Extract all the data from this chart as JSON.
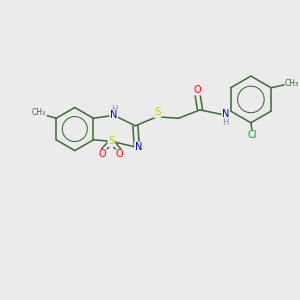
{
  "bg_color": "#ebebeb",
  "atom_colors": {
    "C": "#3a6b35",
    "N": "#0000cc",
    "O": "#ff0000",
    "S": "#cccc00",
    "Cl": "#00aa00",
    "H": "#888899"
  },
  "bond_color": "#3a6b35",
  "figsize": [
    3.0,
    3.0
  ],
  "dpi": 100,
  "xlim": [
    0,
    10
  ],
  "ylim": [
    0,
    10
  ]
}
